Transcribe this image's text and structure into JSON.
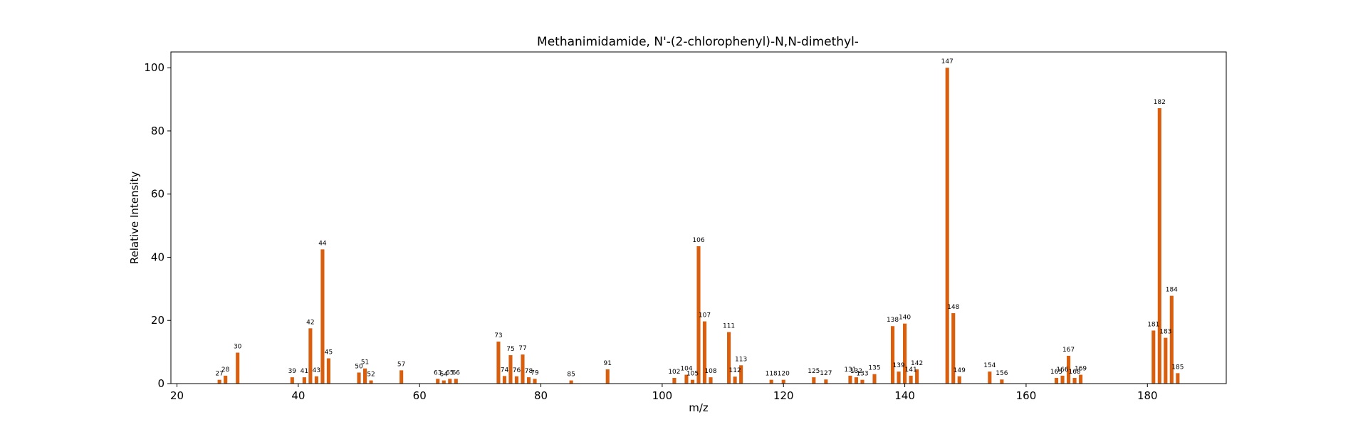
{
  "chart_data": {
    "type": "bar",
    "title": "Methanimidamide, N'-(2-chlorophenyl)-N,N-dimethyl-",
    "xlabel": "m/z",
    "ylabel": "Relative Intensity",
    "xlim": [
      19,
      193
    ],
    "ylim": [
      0,
      105
    ],
    "xticks": [
      20,
      40,
      60,
      80,
      100,
      120,
      140,
      160,
      180
    ],
    "yticks": [
      0,
      20,
      40,
      60,
      80,
      100
    ],
    "grid": false,
    "bar_color": "#d95f0e",
    "peaks": [
      {
        "mz": 27,
        "intensity": 1.2,
        "label": "27"
      },
      {
        "mz": 28,
        "intensity": 2.5,
        "label": "28"
      },
      {
        "mz": 30,
        "intensity": 9.8,
        "label": "30"
      },
      {
        "mz": 39,
        "intensity": 2.0,
        "label": "39"
      },
      {
        "mz": 41,
        "intensity": 2.0,
        "label": "41"
      },
      {
        "mz": 42,
        "intensity": 17.5,
        "label": "42"
      },
      {
        "mz": 43,
        "intensity": 2.3,
        "label": "43"
      },
      {
        "mz": 44,
        "intensity": 42.5,
        "label": "44"
      },
      {
        "mz": 45,
        "intensity": 8.0,
        "label": "45"
      },
      {
        "mz": 50,
        "intensity": 3.5,
        "label": "50"
      },
      {
        "mz": 51,
        "intensity": 4.8,
        "label": "51"
      },
      {
        "mz": 52,
        "intensity": 1.0,
        "label": "52"
      },
      {
        "mz": 57,
        "intensity": 4.2,
        "label": "57"
      },
      {
        "mz": 63,
        "intensity": 1.5,
        "label": "63"
      },
      {
        "mz": 64,
        "intensity": 1.0,
        "label": "64"
      },
      {
        "mz": 65,
        "intensity": 1.5,
        "label": "65"
      },
      {
        "mz": 66,
        "intensity": 1.5,
        "label": "66"
      },
      {
        "mz": 73,
        "intensity": 13.3,
        "label": "73"
      },
      {
        "mz": 74,
        "intensity": 2.4,
        "label": "74"
      },
      {
        "mz": 75,
        "intensity": 9.0,
        "label": "75"
      },
      {
        "mz": 76,
        "intensity": 2.3,
        "label": "76"
      },
      {
        "mz": 77,
        "intensity": 9.2,
        "label": "77"
      },
      {
        "mz": 78,
        "intensity": 2.0,
        "label": "78"
      },
      {
        "mz": 79,
        "intensity": 1.5,
        "label": "79"
      },
      {
        "mz": 85,
        "intensity": 1.0,
        "label": "85"
      },
      {
        "mz": 91,
        "intensity": 4.5,
        "label": "91"
      },
      {
        "mz": 102,
        "intensity": 1.8,
        "label": "102"
      },
      {
        "mz": 104,
        "intensity": 2.8,
        "label": "104"
      },
      {
        "mz": 105,
        "intensity": 1.2,
        "label": "105"
      },
      {
        "mz": 106,
        "intensity": 43.5,
        "label": "106"
      },
      {
        "mz": 107,
        "intensity": 19.7,
        "label": "107"
      },
      {
        "mz": 108,
        "intensity": 2.0,
        "label": "108"
      },
      {
        "mz": 111,
        "intensity": 16.3,
        "label": "111"
      },
      {
        "mz": 112,
        "intensity": 2.2,
        "label": "112"
      },
      {
        "mz": 113,
        "intensity": 5.8,
        "label": "113"
      },
      {
        "mz": 118,
        "intensity": 1.2,
        "label": "118"
      },
      {
        "mz": 120,
        "intensity": 1.2,
        "label": "120"
      },
      {
        "mz": 125,
        "intensity": 2.0,
        "label": "125"
      },
      {
        "mz": 127,
        "intensity": 1.3,
        "label": "127"
      },
      {
        "mz": 131,
        "intensity": 2.5,
        "label": "131"
      },
      {
        "mz": 132,
        "intensity": 2.0,
        "label": "132"
      },
      {
        "mz": 133,
        "intensity": 1.2,
        "label": "133"
      },
      {
        "mz": 135,
        "intensity": 3.0,
        "label": "135"
      },
      {
        "mz": 138,
        "intensity": 18.2,
        "label": "138"
      },
      {
        "mz": 139,
        "intensity": 3.8,
        "label": "139"
      },
      {
        "mz": 140,
        "intensity": 19.0,
        "label": "140"
      },
      {
        "mz": 141,
        "intensity": 2.5,
        "label": "141"
      },
      {
        "mz": 142,
        "intensity": 4.5,
        "label": "142"
      },
      {
        "mz": 147,
        "intensity": 100,
        "label": "147"
      },
      {
        "mz": 148,
        "intensity": 22.3,
        "label": "148"
      },
      {
        "mz": 149,
        "intensity": 2.3,
        "label": "149"
      },
      {
        "mz": 154,
        "intensity": 3.8,
        "label": "154"
      },
      {
        "mz": 156,
        "intensity": 1.3,
        "label": "156"
      },
      {
        "mz": 165,
        "intensity": 1.8,
        "label": "165"
      },
      {
        "mz": 166,
        "intensity": 2.5,
        "label": "166"
      },
      {
        "mz": 167,
        "intensity": 8.8,
        "label": "167"
      },
      {
        "mz": 168,
        "intensity": 1.8,
        "label": "168"
      },
      {
        "mz": 169,
        "intensity": 2.8,
        "label": "169"
      },
      {
        "mz": 181,
        "intensity": 16.8,
        "label": "181"
      },
      {
        "mz": 182,
        "intensity": 87.2,
        "label": "182"
      },
      {
        "mz": 183,
        "intensity": 14.5,
        "label": "183"
      },
      {
        "mz": 184,
        "intensity": 27.8,
        "label": "184"
      },
      {
        "mz": 185,
        "intensity": 3.3,
        "label": "185"
      }
    ]
  }
}
